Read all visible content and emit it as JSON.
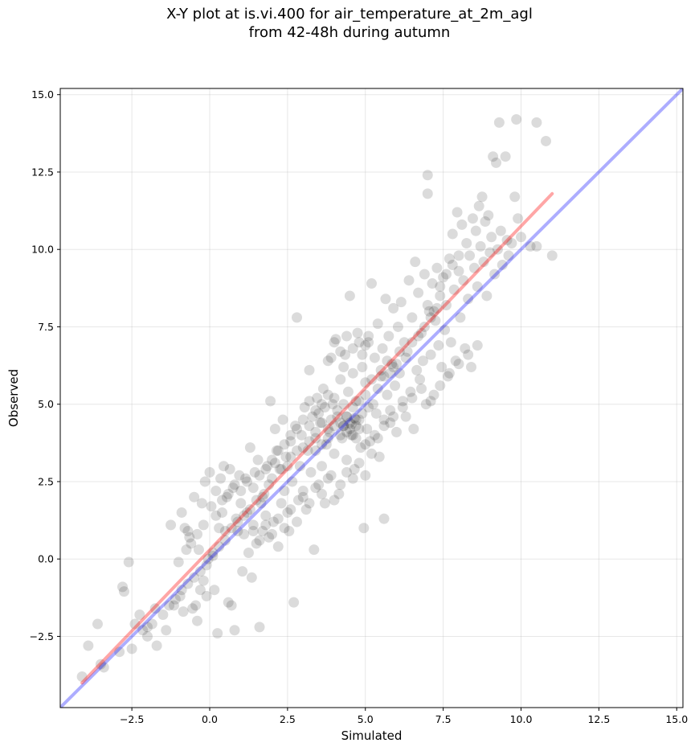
{
  "chart_data": {
    "type": "scatter",
    "title_lines": [
      "X-Y plot at is.vi.400 for air_temperature_at_2m_agl",
      "from 42-48h during autumn"
    ],
    "xlabel": "Simulated",
    "ylabel": "Observed",
    "xlim": [
      -4.8,
      15.2
    ],
    "ylim": [
      -4.8,
      15.2
    ],
    "xticks": [
      -2.5,
      0.0,
      2.5,
      5.0,
      7.5,
      10.0,
      12.5,
      15.0
    ],
    "yticks": [
      -2.5,
      0.0,
      2.5,
      5.0,
      7.5,
      10.0,
      12.5,
      15.0
    ],
    "xtick_labels": [
      "−2.5",
      "0.0",
      "2.5",
      "5.0",
      "7.5",
      "10.0",
      "12.5",
      "15.0"
    ],
    "ytick_labels": [
      "−2.5",
      "0.0",
      "2.5",
      "5.0",
      "7.5",
      "10.0",
      "12.5",
      "15.0"
    ],
    "grid": true,
    "point_color": "#000000",
    "point_alpha": 0.14,
    "fit_line": {
      "color": "#ff0000",
      "alpha": 0.35,
      "x": [
        -4.1,
        11.0
      ],
      "y": [
        -4.0,
        11.8
      ]
    },
    "identity_line": {
      "color": "#0000ff",
      "alpha": 0.32,
      "x": [
        -4.8,
        15.2
      ],
      "y": [
        -4.8,
        15.2
      ]
    },
    "points": [
      [
        -4.1,
        -3.8
      ],
      [
        -3.9,
        -2.8
      ],
      [
        -3.6,
        -2.1
      ],
      [
        -3.5,
        -3.4
      ],
      [
        -2.8,
        -0.9
      ],
      [
        -2.75,
        -1.05
      ],
      [
        -2.6,
        -0.1
      ],
      [
        -2.5,
        -2.9
      ],
      [
        -2.4,
        -2.1
      ],
      [
        -2.25,
        -1.8
      ],
      [
        -2.15,
        -2.3
      ],
      [
        -2.0,
        -2.2
      ],
      [
        -1.85,
        -2.1
      ],
      [
        -1.7,
        -2.8
      ],
      [
        -1.75,
        -1.6
      ],
      [
        -1.4,
        -2.3
      ],
      [
        -1.3,
        -1.5
      ],
      [
        -1.25,
        1.1
      ],
      [
        -1.15,
        -1.5
      ],
      [
        -1.0,
        -0.1
      ],
      [
        -0.95,
        -1.2
      ],
      [
        -0.9,
        1.5
      ],
      [
        -0.85,
        -1.7
      ],
      [
        -0.8,
        1.0
      ],
      [
        -0.75,
        0.3
      ],
      [
        -0.7,
        0.9
      ],
      [
        -0.65,
        0.7
      ],
      [
        -0.55,
        -1.6
      ],
      [
        -0.5,
        2.0
      ],
      [
        -0.45,
        -1.5
      ],
      [
        -0.4,
        -2.0
      ],
      [
        -0.35,
        0.3
      ],
      [
        -0.3,
        -1.0
      ],
      [
        -0.25,
        1.8
      ],
      [
        -0.2,
        -0.7
      ],
      [
        -0.15,
        2.5
      ],
      [
        -0.1,
        -1.2
      ],
      [
        -0.05,
        0.0
      ],
      [
        0.0,
        2.8
      ],
      [
        0.05,
        1.7
      ],
      [
        0.1,
        0.1
      ],
      [
        0.15,
        -1.0
      ],
      [
        0.2,
        2.2
      ],
      [
        0.25,
        -2.4
      ],
      [
        0.3,
        1.0
      ],
      [
        0.35,
        2.6
      ],
      [
        0.4,
        1.5
      ],
      [
        0.45,
        3.0
      ],
      [
        0.5,
        0.9
      ],
      [
        0.55,
        2.0
      ],
      [
        0.6,
        -1.4
      ],
      [
        0.65,
        2.9
      ],
      [
        0.7,
        -1.5
      ],
      [
        0.75,
        2.3
      ],
      [
        0.8,
        -2.3
      ],
      [
        0.85,
        1.3
      ],
      [
        0.9,
        0.9
      ],
      [
        0.95,
        2.7
      ],
      [
        1.0,
        1.8
      ],
      [
        1.05,
        -0.4
      ],
      [
        1.1,
        0.8
      ],
      [
        1.15,
        2.6
      ],
      [
        1.2,
        1.5
      ],
      [
        1.25,
        0.2
      ],
      [
        1.3,
        3.6
      ],
      [
        1.35,
        -0.6
      ],
      [
        1.4,
        1.1
      ],
      [
        1.45,
        2.8
      ],
      [
        1.5,
        0.5
      ],
      [
        1.55,
        3.2
      ],
      [
        1.6,
        -2.2
      ],
      [
        1.65,
        1.8
      ],
      [
        1.7,
        0.9
      ],
      [
        1.75,
        2.1
      ],
      [
        1.8,
        1.4
      ],
      [
        1.85,
        3.0
      ],
      [
        1.9,
        0.7
      ],
      [
        1.95,
        5.1
      ],
      [
        2.0,
        2.6
      ],
      [
        2.05,
        1.2
      ],
      [
        2.1,
        4.2
      ],
      [
        2.15,
        3.5
      ],
      [
        2.2,
        0.4
      ],
      [
        2.25,
        2.9
      ],
      [
        2.3,
        1.8
      ],
      [
        2.35,
        4.5
      ],
      [
        2.4,
        2.2
      ],
      [
        2.45,
        3.3
      ],
      [
        2.5,
        1.5
      ],
      [
        2.55,
        0.9
      ],
      [
        2.6,
        3.8
      ],
      [
        2.65,
        2.5
      ],
      [
        2.7,
        -1.4
      ],
      [
        2.75,
        4.3
      ],
      [
        2.8,
        7.8
      ],
      [
        2.85,
        1.9
      ],
      [
        2.9,
        3.0
      ],
      [
        2.95,
        4.0
      ],
      [
        3.0,
        2.2
      ],
      [
        3.05,
        4.9
      ],
      [
        3.1,
        1.6
      ],
      [
        3.15,
        3.5
      ],
      [
        3.2,
        6.1
      ],
      [
        3.25,
        2.8
      ],
      [
        3.3,
        4.6
      ],
      [
        3.35,
        0.3
      ],
      [
        3.4,
        3.9
      ],
      [
        3.45,
        5.2
      ],
      [
        3.5,
        2.4
      ],
      [
        3.55,
        4.4
      ],
      [
        3.6,
        3.0
      ],
      [
        3.65,
        5.5
      ],
      [
        3.7,
        1.8
      ],
      [
        3.75,
        3.7
      ],
      [
        3.8,
        6.4
      ],
      [
        3.85,
        4.1
      ],
      [
        3.9,
        2.7
      ],
      [
        3.95,
        5.0
      ],
      [
        4.0,
        3.4
      ],
      [
        4.05,
        7.1
      ],
      [
        4.1,
        4.6
      ],
      [
        4.15,
        2.1
      ],
      [
        4.2,
        5.8
      ],
      [
        4.25,
        3.9
      ],
      [
        4.3,
        4.3
      ],
      [
        4.35,
        6.6
      ],
      [
        4.4,
        3.2
      ],
      [
        4.45,
        5.4
      ],
      [
        4.5,
        8.5
      ],
      [
        4.55,
        4.0
      ],
      [
        4.6,
        6.0
      ],
      [
        4.65,
        2.9
      ],
      [
        4.7,
        5.1
      ],
      [
        4.75,
        7.3
      ],
      [
        4.8,
        4.5
      ],
      [
        4.85,
        3.6
      ],
      [
        4.9,
        6.2
      ],
      [
        4.95,
        1.0
      ],
      [
        5.0,
        5.7
      ],
      [
        5.05,
        4.2
      ],
      [
        5.1,
        7.0
      ],
      [
        5.15,
        3.8
      ],
      [
        5.2,
        8.9
      ],
      [
        5.25,
        5.0
      ],
      [
        5.3,
        6.5
      ],
      [
        5.35,
        4.7
      ],
      [
        5.4,
        7.6
      ],
      [
        5.45,
        3.3
      ],
      [
        5.5,
        5.9
      ],
      [
        5.55,
        6.8
      ],
      [
        5.6,
        1.3
      ],
      [
        5.65,
        8.4
      ],
      [
        5.7,
        5.3
      ],
      [
        5.75,
        7.2
      ],
      [
        5.8,
        4.4
      ],
      [
        5.85,
        6.3
      ],
      [
        5.9,
        8.1
      ],
      [
        5.95,
        5.6
      ],
      [
        6.0,
        4.1
      ],
      [
        6.05,
        7.5
      ],
      [
        6.1,
        6.0
      ],
      [
        6.15,
        8.3
      ],
      [
        6.2,
        5.1
      ],
      [
        6.25,
        7.0
      ],
      [
        6.3,
        4.6
      ],
      [
        6.35,
        6.7
      ],
      [
        6.4,
        9.0
      ],
      [
        6.45,
        5.4
      ],
      [
        6.5,
        7.8
      ],
      [
        6.55,
        4.2
      ],
      [
        6.6,
        9.6
      ],
      [
        6.65,
        6.1
      ],
      [
        6.7,
        8.6
      ],
      [
        6.75,
        5.8
      ],
      [
        6.8,
        7.3
      ],
      [
        6.85,
        6.4
      ],
      [
        6.9,
        9.2
      ],
      [
        6.95,
        5.0
      ],
      [
        7.0,
        12.4
      ],
      [
        7.0,
        11.8
      ],
      [
        7.05,
        8.0
      ],
      [
        7.1,
        6.6
      ],
      [
        7.15,
        8.9
      ],
      [
        7.2,
        5.3
      ],
      [
        7.25,
        7.7
      ],
      [
        7.3,
        9.4
      ],
      [
        7.35,
        6.9
      ],
      [
        7.4,
        8.5
      ],
      [
        7.45,
        6.2
      ],
      [
        7.5,
        9.1
      ],
      [
        7.55,
        7.4
      ],
      [
        7.6,
        8.2
      ],
      [
        7.65,
        5.9
      ],
      [
        7.7,
        9.7
      ],
      [
        7.75,
        7.0
      ],
      [
        7.8,
        10.5
      ],
      [
        7.85,
        8.7
      ],
      [
        7.9,
        6.4
      ],
      [
        7.95,
        11.2
      ],
      [
        8.0,
        9.3
      ],
      [
        8.05,
        7.8
      ],
      [
        8.1,
        10.8
      ],
      [
        8.15,
        9.0
      ],
      [
        8.2,
        6.8
      ],
      [
        8.25,
        10.2
      ],
      [
        8.3,
        8.4
      ],
      [
        8.35,
        9.8
      ],
      [
        8.4,
        6.2
      ],
      [
        8.45,
        11.0
      ],
      [
        8.5,
        9.4
      ],
      [
        8.55,
        10.6
      ],
      [
        8.6,
        8.8
      ],
      [
        8.65,
        11.4
      ],
      [
        8.7,
        10.1
      ],
      [
        8.75,
        11.7
      ],
      [
        8.8,
        9.6
      ],
      [
        8.85,
        10.9
      ],
      [
        8.9,
        8.5
      ],
      [
        8.95,
        11.1
      ],
      [
        9.0,
        9.9
      ],
      [
        9.05,
        10.4
      ],
      [
        9.1,
        13.0
      ],
      [
        9.15,
        9.2
      ],
      [
        9.2,
        12.8
      ],
      [
        9.25,
        10.0
      ],
      [
        9.3,
        14.1
      ],
      [
        9.35,
        10.6
      ],
      [
        9.4,
        9.5
      ],
      [
        9.5,
        13.0
      ],
      [
        9.55,
        10.3
      ],
      [
        9.6,
        9.8
      ],
      [
        9.7,
        10.2
      ],
      [
        9.8,
        11.7
      ],
      [
        9.85,
        14.2
      ],
      [
        9.9,
        11.0
      ],
      [
        10.0,
        10.4
      ],
      [
        10.3,
        10.1
      ],
      [
        10.5,
        10.1
      ],
      [
        10.5,
        14.1
      ],
      [
        10.8,
        13.5
      ],
      [
        11.0,
        9.8
      ],
      [
        3.5,
        4.7
      ],
      [
        3.7,
        4.9
      ],
      [
        3.9,
        4.5
      ],
      [
        4.0,
        4.3
      ],
      [
        4.1,
        4.8
      ],
      [
        4.2,
        4.4
      ],
      [
        4.3,
        5.0
      ],
      [
        4.4,
        4.6
      ],
      [
        4.5,
        4.2
      ],
      [
        4.6,
        4.9
      ],
      [
        4.7,
        4.5
      ],
      [
        4.8,
        5.1
      ],
      [
        4.9,
        4.7
      ],
      [
        5.0,
        5.3
      ],
      [
        5.1,
        4.9
      ],
      [
        4.2,
        4.0
      ],
      [
        4.3,
        4.3
      ],
      [
        4.4,
        4.1
      ],
      [
        4.5,
        4.4
      ],
      [
        4.6,
        4.0
      ],
      [
        4.7,
        4.3
      ],
      [
        4.8,
        4.2
      ],
      [
        4.4,
        4.6
      ],
      [
        4.55,
        4.35
      ],
      [
        4.65,
        4.55
      ],
      [
        4.0,
        5.2
      ],
      [
        3.8,
        5.3
      ],
      [
        3.6,
        5.0
      ],
      [
        3.4,
        4.8
      ],
      [
        3.2,
        5.1
      ],
      [
        2.6,
        3.3
      ],
      [
        2.8,
        3.5
      ],
      [
        3.0,
        3.6
      ],
      [
        3.2,
        3.8
      ],
      [
        3.4,
        3.5
      ],
      [
        3.6,
        3.7
      ],
      [
        3.8,
        3.9
      ],
      [
        2.5,
        3.0
      ],
      [
        2.3,
        2.9
      ],
      [
        2.1,
        3.1
      ],
      [
        1.9,
        2.4
      ],
      [
        1.7,
        2.0
      ],
      [
        1.5,
        1.9
      ],
      [
        1.3,
        1.6
      ],
      [
        1.1,
        1.4
      ],
      [
        0.9,
        1.2
      ],
      [
        0.7,
        1.0
      ],
      [
        0.5,
        0.6
      ],
      [
        0.3,
        0.4
      ],
      [
        0.1,
        0.2
      ],
      [
        -0.1,
        -0.2
      ],
      [
        -0.3,
        -0.4
      ],
      [
        -0.5,
        -0.6
      ],
      [
        -0.7,
        -0.8
      ],
      [
        -0.9,
        -1.0
      ],
      [
        -1.1,
        -1.3
      ],
      [
        -1.5,
        -1.8
      ],
      [
        -2.0,
        -2.5
      ],
      [
        -2.9,
        -3.0
      ],
      [
        -3.4,
        -3.5
      ],
      [
        5.5,
        6.1
      ],
      [
        5.7,
        6.4
      ],
      [
        5.9,
        6.2
      ],
      [
        6.1,
        6.7
      ],
      [
        6.3,
        6.5
      ],
      [
        6.5,
        7.0
      ],
      [
        6.7,
        7.2
      ],
      [
        6.9,
        7.5
      ],
      [
        7.1,
        7.8
      ],
      [
        7.3,
        8.1
      ],
      [
        5.2,
        5.8
      ],
      [
        5.4,
        5.5
      ],
      [
        5.6,
        5.9
      ],
      [
        5.8,
        6.0
      ],
      [
        6.0,
        6.3
      ],
      [
        4.9,
        6.6
      ],
      [
        5.0,
        6.9
      ],
      [
        5.1,
        7.2
      ],
      [
        4.8,
        7.0
      ],
      [
        4.6,
        6.8
      ],
      [
        4.4,
        7.2
      ],
      [
        4.2,
        6.7
      ],
      [
        4.0,
        7.0
      ],
      [
        3.9,
        6.5
      ],
      [
        4.3,
        6.2
      ],
      [
        4.7,
        3.9
      ],
      [
        5.0,
        3.7
      ],
      [
        5.3,
        4.0
      ],
      [
        5.6,
        4.3
      ],
      [
        5.9,
        4.6
      ],
      [
        6.2,
        4.9
      ],
      [
        6.5,
        5.2
      ],
      [
        6.8,
        5.5
      ],
      [
        7.1,
        5.1
      ],
      [
        7.4,
        5.6
      ],
      [
        7.7,
        6.0
      ],
      [
        8.0,
        6.3
      ],
      [
        8.3,
        6.6
      ],
      [
        8.6,
        6.9
      ],
      [
        7.0,
        8.2
      ],
      [
        7.2,
        8.0
      ],
      [
        7.4,
        8.8
      ],
      [
        7.6,
        9.2
      ],
      [
        7.8,
        9.5
      ],
      [
        8.0,
        9.8
      ],
      [
        1.0,
        2.2
      ],
      [
        1.2,
        2.5
      ],
      [
        1.4,
        2.3
      ],
      [
        1.6,
        2.7
      ],
      [
        1.8,
        2.9
      ],
      [
        2.0,
        3.2
      ],
      [
        2.2,
        3.5
      ],
      [
        2.4,
        3.7
      ],
      [
        2.6,
        4.0
      ],
      [
        2.8,
        4.2
      ],
      [
        3.0,
        4.5
      ],
      [
        3.2,
        4.3
      ],
      [
        3.4,
        4.1
      ],
      [
        3.6,
        4.4
      ],
      [
        3.8,
        4.2
      ],
      [
        0.2,
        1.4
      ],
      [
        0.4,
        1.9
      ],
      [
        0.6,
        2.1
      ],
      [
        0.8,
        2.4
      ],
      [
        -0.2,
        1.1
      ],
      [
        -0.4,
        0.8
      ],
      [
        -0.6,
        0.5
      ],
      [
        1.4,
        0.9
      ],
      [
        1.6,
        0.6
      ],
      [
        1.8,
        1.1
      ],
      [
        2.0,
        0.8
      ],
      [
        2.2,
        1.3
      ],
      [
        2.4,
        1.0
      ],
      [
        2.6,
        1.6
      ],
      [
        2.8,
        1.2
      ],
      [
        3.0,
        2.0
      ],
      [
        3.2,
        1.8
      ],
      [
        3.4,
        2.3
      ],
      [
        3.6,
        2.1
      ],
      [
        3.8,
        2.6
      ],
      [
        4.0,
        1.9
      ],
      [
        4.2,
        2.4
      ],
      [
        4.4,
        2.8
      ],
      [
        4.6,
        2.6
      ],
      [
        4.8,
        3.1
      ],
      [
        5.0,
        2.7
      ],
      [
        5.2,
        3.4
      ],
      [
        5.4,
        3.9
      ],
      [
        5.6,
        4.5
      ],
      [
        5.8,
        4.8
      ]
    ]
  }
}
